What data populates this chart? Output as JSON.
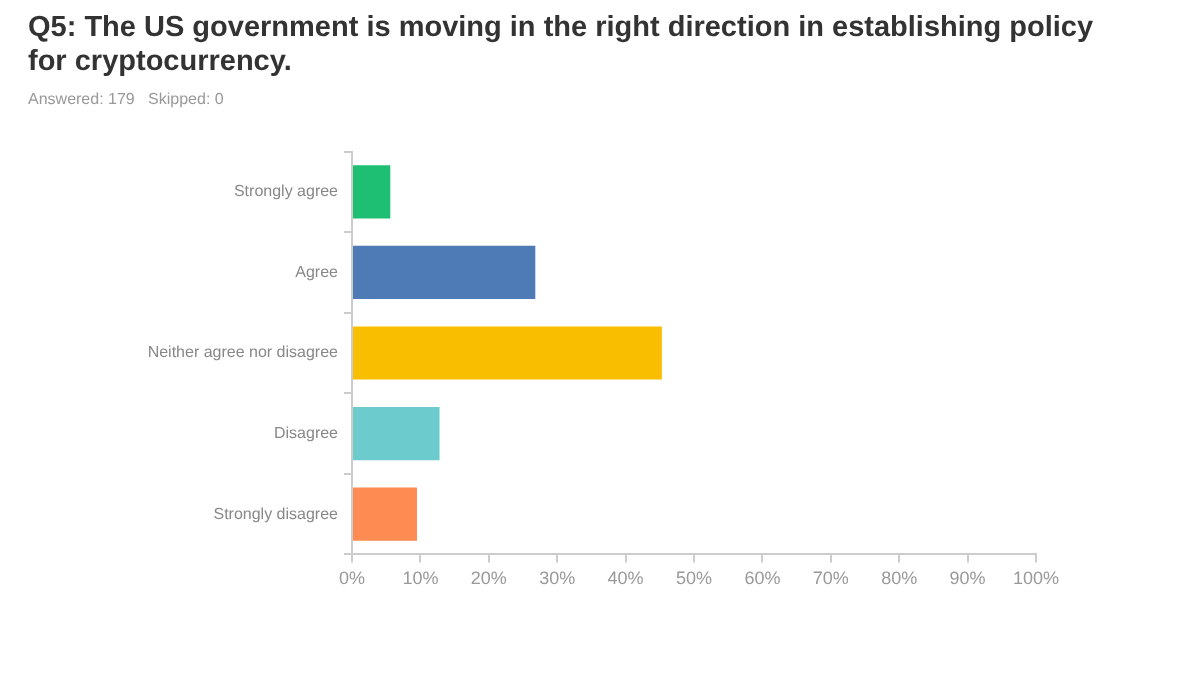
{
  "chart_data": {
    "type": "bar",
    "orientation": "horizontal",
    "title": "Q5: The US government is moving in the right direction in establishing policy for cryptocurrency.",
    "subtitle": "Answered: 179   Skipped: 0",
    "categories": [
      "Strongly agree",
      "Agree",
      "Neither agree nor disagree",
      "Disagree",
      "Strongly disagree"
    ],
    "values": [
      5.6,
      26.8,
      45.3,
      12.8,
      9.5
    ],
    "colors": [
      "#1fbf73",
      "#4e7ab5",
      "#f9be00",
      "#6ccbcc",
      "#fd8b52"
    ],
    "xlim": [
      0,
      100
    ],
    "xticks": [
      {
        "value": 0,
        "label": "0%"
      },
      {
        "value": 10,
        "label": "10%"
      },
      {
        "value": 20,
        "label": "20%"
      },
      {
        "value": 30,
        "label": "30%"
      },
      {
        "value": 40,
        "label": "40%"
      },
      {
        "value": 50,
        "label": "50%"
      },
      {
        "value": 60,
        "label": "60%"
      },
      {
        "value": 70,
        "label": "70%"
      },
      {
        "value": 80,
        "label": "80%"
      },
      {
        "value": 90,
        "label": "90%"
      },
      {
        "value": 100,
        "label": "100%"
      }
    ],
    "grid": false,
    "legend": false
  }
}
